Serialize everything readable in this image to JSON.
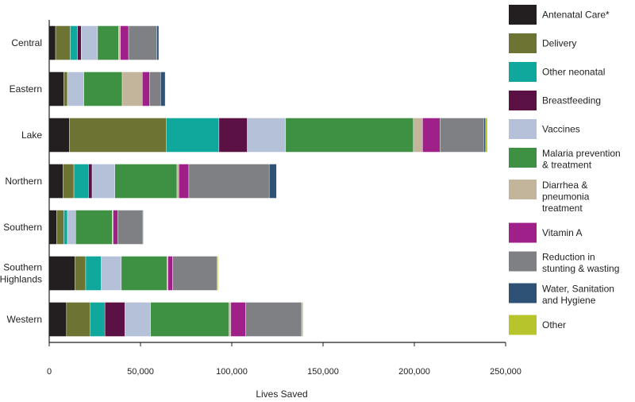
{
  "chart_data": {
    "type": "bar",
    "orientation": "horizontal",
    "stacked": true,
    "title": "",
    "xlabel": "Lives Saved",
    "ylabel": "",
    "xlim": [
      0,
      250000
    ],
    "x_ticks": [
      0,
      50000,
      100000,
      150000,
      200000,
      250000
    ],
    "x_tick_labels": [
      "0",
      "50,000",
      "100,000",
      "150,000",
      "200,000",
      "250,000"
    ],
    "grid": false,
    "legend_position": "right",
    "categories": [
      {
        "label": "Central"
      },
      {
        "label": "Eastern"
      },
      {
        "label": "Lake"
      },
      {
        "label": "Northern"
      },
      {
        "label": "Southern"
      },
      {
        "label": "Southern Highlands",
        "lines": [
          "Southern",
          "Highlands"
        ]
      },
      {
        "label": "Western"
      }
    ],
    "series": [
      {
        "name": "Antenatal Care*",
        "lines": [
          "Antenatal Care*"
        ],
        "color": "#231f20",
        "values": [
          3500,
          8000,
          11000,
          7500,
          4000,
          14000,
          9500
        ]
      },
      {
        "name": "Delivery",
        "lines": [
          "Delivery"
        ],
        "color": "#6d7333",
        "values": [
          8000,
          2000,
          53000,
          6000,
          4000,
          6000,
          13000
        ]
      },
      {
        "name": "Other neonatal",
        "lines": [
          "Other neonatal"
        ],
        "color": "#10a89c",
        "values": [
          4000,
          0,
          29000,
          8000,
          2000,
          8500,
          8000
        ]
      },
      {
        "name": "Breastfeeding",
        "lines": [
          "Breastfeeding"
        ],
        "color": "#5b1144",
        "values": [
          2000,
          0,
          15500,
          2000,
          0,
          0,
          11000
        ]
      },
      {
        "name": "Vaccines",
        "lines": [
          "Vaccines"
        ],
        "color": "#b5c1d9",
        "values": [
          9000,
          9000,
          21000,
          12500,
          4500,
          11000,
          14000
        ]
      },
      {
        "name": "Malaria prevention & treatment",
        "lines": [
          "Malaria prevention",
          "& treatment"
        ],
        "color": "#3e9142",
        "values": [
          11500,
          21000,
          70000,
          34000,
          20000,
          25000,
          43000
        ]
      },
      {
        "name": "Diarrhea & pneumonia treatment",
        "lines": [
          "Diarrhea &",
          "pneumonia",
          "treatment"
        ],
        "color": "#c2b59b",
        "values": [
          1000,
          11000,
          5000,
          1000,
          500,
          500,
          1000
        ]
      },
      {
        "name": "Vitamin A",
        "lines": [
          "Vitamin A"
        ],
        "color": "#a0208a",
        "values": [
          4500,
          4000,
          9500,
          5500,
          2500,
          2500,
          8000
        ]
      },
      {
        "name": "Reduction in stunting & wasting",
        "lines": [
          "Reduction in",
          "stunting & wasting"
        ],
        "color": "#7f8083",
        "values": [
          15500,
          6000,
          24000,
          44000,
          13500,
          24500,
          30500
        ]
      },
      {
        "name": "Water, Sanitation and Hygiene",
        "lines": [
          "Water, Sanitation",
          "and Hygiene"
        ],
        "color": "#2e5275",
        "values": [
          1000,
          2500,
          1000,
          4000,
          500,
          0,
          500
        ]
      },
      {
        "name": "Other",
        "lines": [
          "Other"
        ],
        "color": "#b7c42c",
        "values": [
          0,
          0,
          1000,
          0,
          0,
          500,
          500
        ]
      }
    ]
  }
}
